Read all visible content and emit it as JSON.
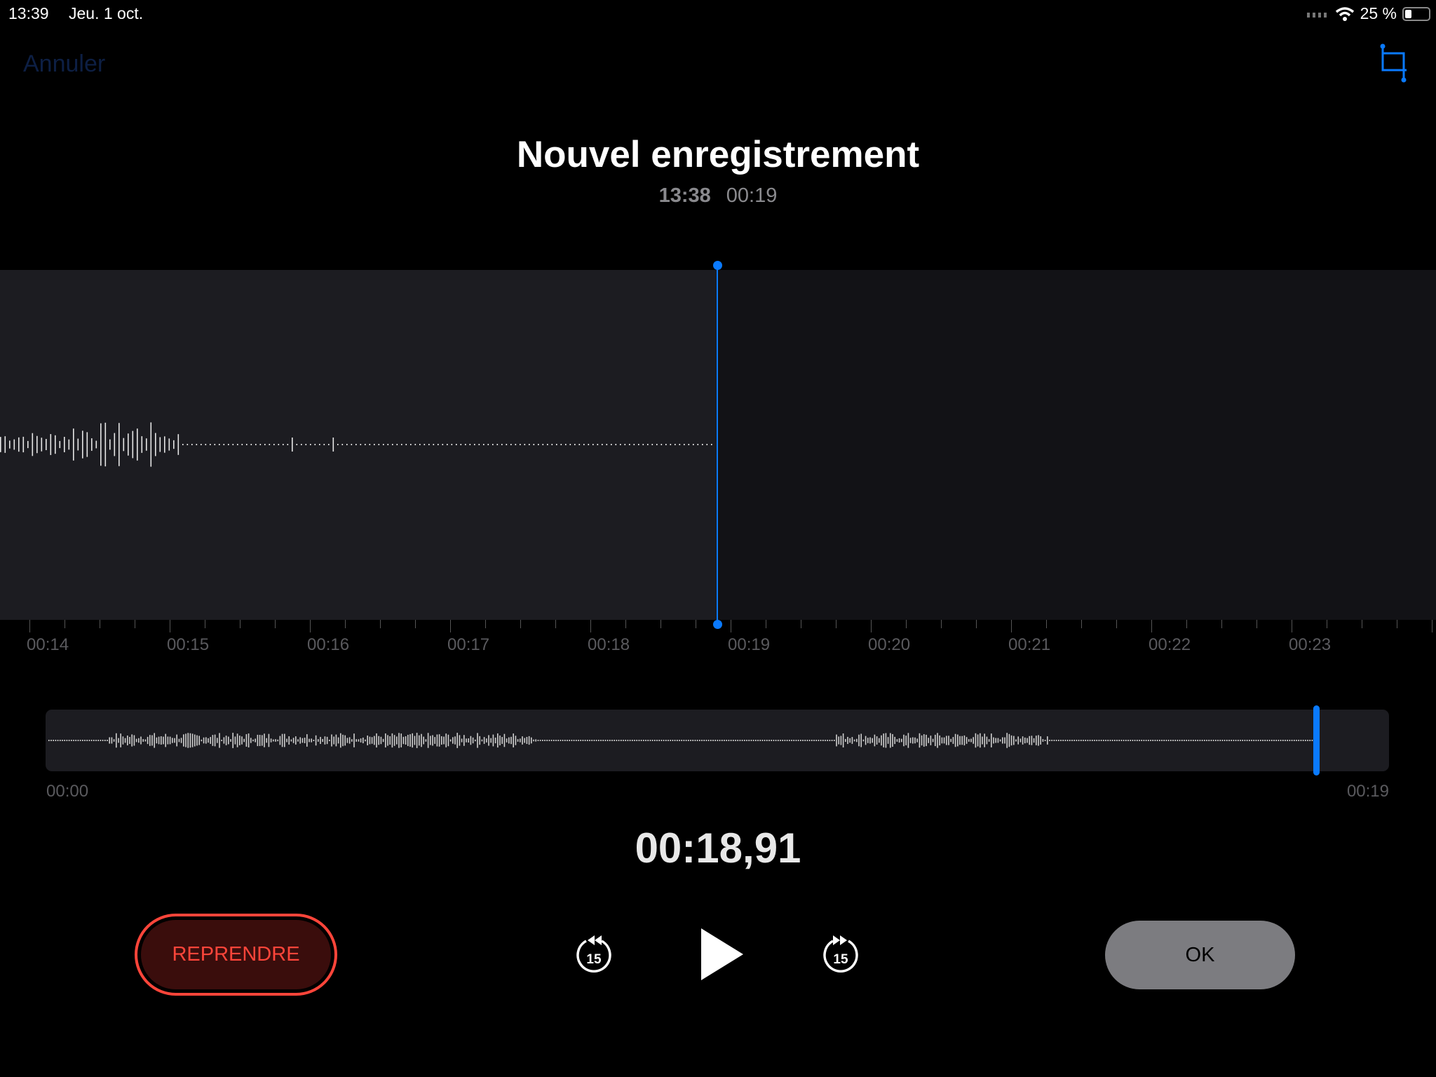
{
  "status_bar": {
    "time": "13:39",
    "date": "Jeu. 1 oct.",
    "battery": "25 %",
    "battery_level": 0.25,
    "icons": [
      "cellular-signal-icon",
      "wifi-icon",
      "battery-icon"
    ]
  },
  "nav": {
    "cancel_label": "Annuler",
    "crop_icon": "crop-trim-icon"
  },
  "recording": {
    "title": "Nouvel enregistrement",
    "date": "13:38",
    "duration": "00:19"
  },
  "timeline": {
    "labels": [
      "00:14",
      "00:15",
      "00:16",
      "00:17",
      "00:18",
      "00:19",
      "00:20",
      "00:21",
      "00:22",
      "00:23"
    ]
  },
  "overview": {
    "start": "00:00",
    "end": "00:19",
    "position_fraction": 0.996
  },
  "elapsed": "00:18,91",
  "controls": {
    "resume_label": "REPRENDRE",
    "skip_back": "15",
    "skip_forward": "15",
    "ok_label": "OK"
  },
  "colors": {
    "accent": "#0a7aff",
    "record": "#ff453a"
  }
}
